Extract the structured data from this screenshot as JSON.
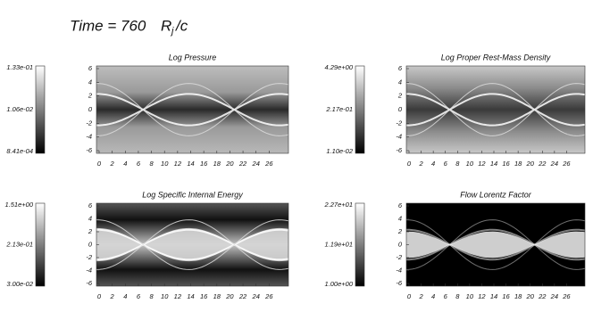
{
  "header": {
    "time": "Time =  760",
    "unit": "R",
    "unit_sub": "j",
    "unit_suffix": "/c"
  },
  "axes": {
    "xticks": [
      "0",
      "2",
      "4",
      "6",
      "8",
      "10",
      "12",
      "14",
      "16",
      "18",
      "20",
      "22",
      "24",
      "26"
    ],
    "yticks": [
      "6",
      "4",
      "2",
      "0",
      "-2",
      "-4",
      "-6"
    ]
  },
  "panels": [
    {
      "title": "Log Pressure",
      "colorbar": [
        "1.33e-01",
        "1.06e-02",
        "8.41e-04"
      ]
    },
    {
      "title": "Log Proper Rest-Mass Density",
      "colorbar": [
        "4.29e+00",
        "2.17e-01",
        "1.10e-02"
      ]
    },
    {
      "title": "Log Specific Internal Energy",
      "colorbar": [
        "1.51e+00",
        "2.13e-01",
        "3.00e-02"
      ]
    },
    {
      "title": "Flow Lorentz Factor",
      "colorbar": [
        "2.27e+01",
        "1.19e+01",
        "1.00e+00"
      ]
    }
  ]
}
